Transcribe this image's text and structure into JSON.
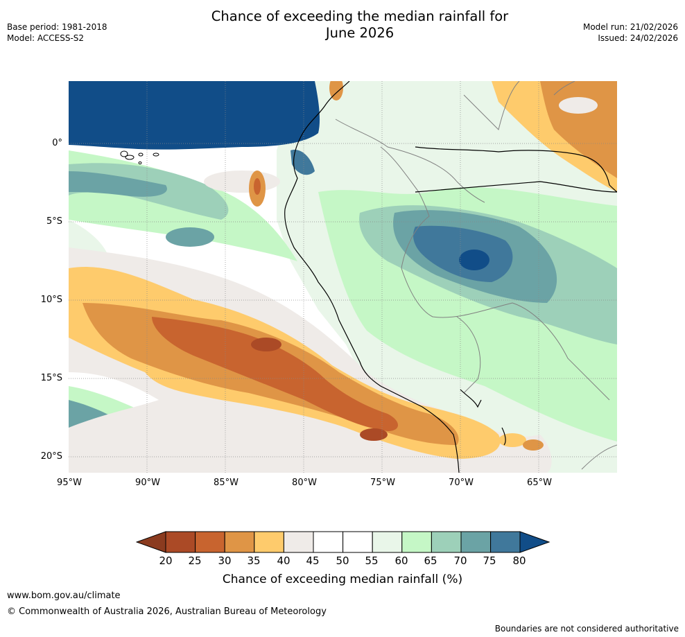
{
  "header": {
    "title_line1": "Chance of exceeding the median rainfall for",
    "title_line2": "June 2026",
    "base_period": "Base period: 1981-2018",
    "model": "Model: ACCESS-S2",
    "model_run": "Model run: 21/02/2026",
    "issued": "Issued: 24/02/2026"
  },
  "map": {
    "lat_labels": [
      "0°",
      "5°S",
      "10°S",
      "15°S",
      "20°S"
    ],
    "lon_labels": [
      "95°W",
      "90°W",
      "85°W",
      "80°W",
      "75°W",
      "70°W",
      "65°W"
    ]
  },
  "colorbar": {
    "ticks": [
      "20",
      "25",
      "30",
      "35",
      "40",
      "45",
      "50",
      "55",
      "60",
      "65",
      "70",
      "75",
      "80"
    ],
    "colors": [
      "#ab4a26",
      "#c8642f",
      "#df9546",
      "#fecb6c",
      "#efebe8",
      "#ffffff",
      "#ffffff",
      "#e9f6e9",
      "#c5f7c6",
      "#9dd0b9",
      "#6ba3a5",
      "#40789b"
    ],
    "under_color": "#8b3b1f",
    "over_color": "#114d88",
    "label": "Chance of exceeding median rainfall (%)"
  },
  "footer": {
    "website": "www.bom.gov.au/climate",
    "copyright": "© Commonwealth of Australia 2026, Australian Bureau of Meteorology",
    "disclaimer": "Boundaries are not considered authoritative"
  }
}
